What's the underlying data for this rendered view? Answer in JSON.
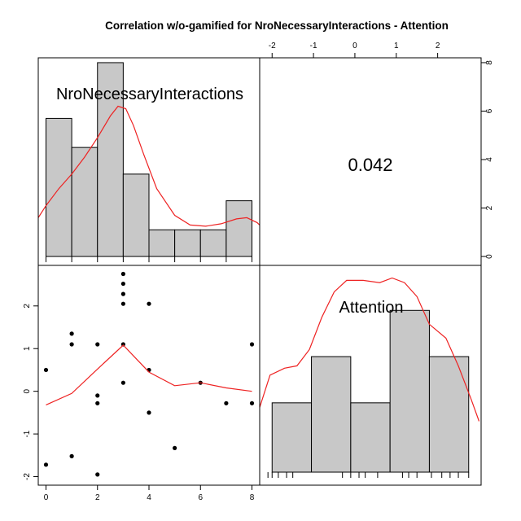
{
  "chart_data": {
    "type": "scatter",
    "title": "Correlation w/o-gamified for NroNecessaryInteractions - Attention",
    "variables": [
      "NroNecessaryInteractions",
      "Attention"
    ],
    "correlation": {
      "label": "0.042",
      "value": 0.042
    },
    "histograms": [
      {
        "variable": "NroNecessaryInteractions",
        "bins": [
          {
            "from": 0,
            "to": 1,
            "count": 5.7
          },
          {
            "from": 1,
            "to": 2,
            "count": 4.5
          },
          {
            "from": 2,
            "to": 3,
            "count": 8
          },
          {
            "from": 3,
            "to": 4,
            "count": 3.4
          },
          {
            "from": 4,
            "to": 5,
            "count": 1.1
          },
          {
            "from": 5,
            "to": 6,
            "count": 1.1
          },
          {
            "from": 6,
            "to": 7,
            "count": 1.1
          },
          {
            "from": 7,
            "to": 8,
            "count": 2.3
          }
        ],
        "density": [
          [
            -0.3,
            1.6
          ],
          [
            0,
            2.1
          ],
          [
            0.5,
            2.8
          ],
          [
            1,
            3.4
          ],
          [
            1.5,
            4.1
          ],
          [
            2,
            4.9
          ],
          [
            2.5,
            5.8
          ],
          [
            2.8,
            6.2
          ],
          [
            3.1,
            6.1
          ],
          [
            3.4,
            5.4
          ],
          [
            3.8,
            4.2
          ],
          [
            4.3,
            2.8
          ],
          [
            5,
            1.7
          ],
          [
            5.6,
            1.3
          ],
          [
            6.2,
            1.25
          ],
          [
            6.8,
            1.35
          ],
          [
            7.4,
            1.55
          ],
          [
            7.8,
            1.6
          ],
          [
            8.2,
            1.4
          ],
          [
            8.5,
            1.1
          ]
        ],
        "rug": [
          0,
          1,
          2,
          3,
          4,
          5,
          6,
          7,
          8
        ]
      },
      {
        "variable": "Attention",
        "bins": [
          {
            "from": -2.0,
            "to": -1.05,
            "count": 3
          },
          {
            "from": -1.05,
            "to": -0.1,
            "count": 5
          },
          {
            "from": -0.1,
            "to": 0.85,
            "count": 3
          },
          {
            "from": 0.85,
            "to": 1.8,
            "count": 7
          },
          {
            "from": 1.8,
            "to": 2.75,
            "count": 5
          }
        ],
        "density": [
          [
            -2.3,
            2.8
          ],
          [
            -2.05,
            4.2
          ],
          [
            -1.7,
            4.5
          ],
          [
            -1.4,
            4.6
          ],
          [
            -1.1,
            5.3
          ],
          [
            -0.8,
            6.7
          ],
          [
            -0.5,
            7.8
          ],
          [
            -0.2,
            8.3
          ],
          [
            0.2,
            8.3
          ],
          [
            0.6,
            8.2
          ],
          [
            0.9,
            8.4
          ],
          [
            1.2,
            8.2
          ],
          [
            1.5,
            7.6
          ],
          [
            1.8,
            6.4
          ],
          [
            2.2,
            5.8
          ],
          [
            2.5,
            4.6
          ],
          [
            2.8,
            3.2
          ],
          [
            3.0,
            2.2
          ]
        ],
        "rug": [
          -2.1,
          -2.0,
          -1.85,
          -1.65,
          -1.5,
          -0.3,
          -0.1,
          0.1,
          0.25,
          0.55,
          1.15,
          1.3,
          1.5,
          1.85,
          2.1,
          2.3,
          2.5,
          2.75
        ]
      }
    ],
    "scatter": {
      "xlabel": "NroNecessaryInteractions",
      "ylabel": "Attention",
      "points": [
        {
          "x": 0,
          "y": 0.5
        },
        {
          "x": 0,
          "y": -1.72
        },
        {
          "x": 1,
          "y": 1.35
        },
        {
          "x": 1,
          "y": 1.1
        },
        {
          "x": 1,
          "y": -1.52
        },
        {
          "x": 2,
          "y": 1.1
        },
        {
          "x": 2,
          "y": -0.1
        },
        {
          "x": 2,
          "y": -0.28
        },
        {
          "x": 2,
          "y": -1.95
        },
        {
          "x": 3,
          "y": 2.75
        },
        {
          "x": 3,
          "y": 2.52
        },
        {
          "x": 3,
          "y": 2.28
        },
        {
          "x": 3,
          "y": 2.05
        },
        {
          "x": 3,
          "y": 1.1
        },
        {
          "x": 3,
          "y": 0.2
        },
        {
          "x": 4,
          "y": 2.05
        },
        {
          "x": 4,
          "y": 0.5
        },
        {
          "x": 4,
          "y": -0.5
        },
        {
          "x": 5,
          "y": -1.33
        },
        {
          "x": 6,
          "y": 0.2
        },
        {
          "x": 7,
          "y": -0.28
        },
        {
          "x": 8,
          "y": 1.1
        },
        {
          "x": 8,
          "y": -0.28
        }
      ],
      "smooth": [
        [
          0,
          -0.32
        ],
        [
          1,
          -0.05
        ],
        [
          2,
          0.52
        ],
        [
          3,
          1.08
        ],
        [
          4,
          0.45
        ],
        [
          5,
          0.13
        ],
        [
          6,
          0.2
        ],
        [
          7,
          0.08
        ],
        [
          8,
          0.0
        ]
      ]
    },
    "axes": {
      "bottom_x": {
        "range": [
          -0.3,
          8.3
        ],
        "ticks": [
          0,
          2,
          4,
          6,
          8
        ]
      },
      "left_y": {
        "range": [
          -2.2,
          2.95
        ],
        "ticks": [
          -2,
          -1,
          0,
          1,
          2
        ]
      },
      "top_x": {
        "range": [
          -2.3,
          3.05
        ],
        "ticks": [
          -2,
          -1,
          0,
          1,
          2
        ]
      },
      "right_y": {
        "range": [
          -0.3,
          8.2
        ],
        "ticks": [
          0,
          2,
          4,
          6,
          8
        ]
      }
    },
    "colors": {
      "bar_fill": "#c8c8c8",
      "bar_stroke": "#000000",
      "smooth_line": "#ee2222",
      "point": "#000000"
    },
    "grid": false,
    "legend": "none"
  }
}
